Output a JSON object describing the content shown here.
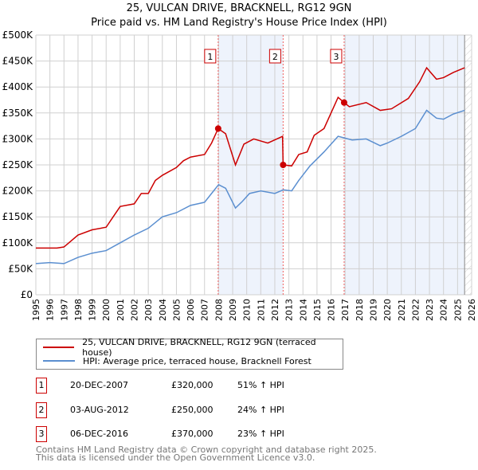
{
  "title": "25, VULCAN DRIVE, BRACKNELL, RG12 9GN",
  "subtitle": "Price paid vs. HM Land Registry's House Price Index (HPI)",
  "chart_data": {
    "type": "line",
    "xlim": [
      1995,
      2026
    ],
    "ylim": [
      0,
      500000
    ],
    "ytick_labels": [
      "£0",
      "£50K",
      "£100K",
      "£150K",
      "£200K",
      "£250K",
      "£300K",
      "£350K",
      "£400K",
      "£450K",
      "£500K"
    ],
    "xtick_labels": [
      "1995",
      "1996",
      "1997",
      "1998",
      "1999",
      "2000",
      "2001",
      "2002",
      "2003",
      "2004",
      "2005",
      "2006",
      "2007",
      "2008",
      "2009",
      "2010",
      "2011",
      "2012",
      "2013",
      "2014",
      "2015",
      "2016",
      "2017",
      "2018",
      "2019",
      "2020",
      "2021",
      "2022",
      "2023",
      "2024",
      "2025",
      "2026"
    ],
    "series": [
      {
        "name": "25, VULCAN DRIVE, BRACKNELL, RG12 9GN (terraced house)",
        "color": "#cc0000",
        "x": [
          1995,
          1996.5,
          1997,
          1998,
          1999,
          2000,
          2000.5,
          2001,
          2002,
          2002.5,
          2003,
          2003.5,
          2004,
          2005,
          2005.5,
          2006,
          2007,
          2007.5,
          2007.97,
          2008.5,
          2009.2,
          2009.8,
          2010.5,
          2011.5,
          2012.55,
          2012.59,
          2013.2,
          2013.7,
          2014.3,
          2014.8,
          2015.5,
          2016.5,
          2016.93,
          2017.3,
          2018.5,
          2019.5,
          2020.3,
          2021.5,
          2022.3,
          2022.8,
          2023.5,
          2024,
          2024.7,
          2025.5
        ],
        "y": [
          90000,
          90000,
          92000,
          115000,
          125000,
          130000,
          150000,
          170000,
          175000,
          195000,
          195000,
          220000,
          230000,
          245000,
          258000,
          265000,
          270000,
          292000,
          320000,
          310000,
          250000,
          290000,
          300000,
          292000,
          305000,
          250000,
          248000,
          270000,
          275000,
          307000,
          320000,
          380000,
          370000,
          362000,
          370000,
          355000,
          358000,
          378000,
          410000,
          437000,
          415000,
          418000,
          428000,
          437000
        ]
      },
      {
        "name": "HPI: Average price, terraced house, Bracknell Forest",
        "color": "#5b8fd0",
        "x": [
          1995,
          1996,
          1997,
          1998,
          1999,
          2000,
          2001,
          2002,
          2003,
          2004,
          2005,
          2006,
          2007,
          2007.5,
          2008,
          2008.5,
          2009.2,
          2009.7,
          2010.2,
          2011,
          2012,
          2012.6,
          2013.2,
          2013.7,
          2014.5,
          2015.5,
          2016.5,
          2017.5,
          2018.5,
          2019.5,
          2020,
          2021,
          2022,
          2022.8,
          2023.5,
          2024,
          2024.7,
          2025.5
        ],
        "y": [
          60000,
          62000,
          60000,
          72000,
          80000,
          85000,
          100000,
          115000,
          128000,
          150000,
          158000,
          172000,
          178000,
          195000,
          212000,
          205000,
          167000,
          180000,
          195000,
          200000,
          195000,
          202000,
          200000,
          220000,
          248000,
          275000,
          305000,
          298000,
          300000,
          287000,
          292000,
          305000,
          320000,
          355000,
          340000,
          338000,
          348000,
          355000
        ]
      }
    ],
    "sales": [
      {
        "label": "1",
        "x": 2007.97,
        "y": 320000
      },
      {
        "label": "2",
        "x": 2012.59,
        "y": 250000
      },
      {
        "label": "3",
        "x": 2016.93,
        "y": 370000
      }
    ],
    "shaded_ranges": [
      [
        2007.97,
        2012.59
      ],
      [
        2016.93,
        2025.5
      ]
    ],
    "forecast_start": 2025.5
  },
  "legend": {
    "property": "25, VULCAN DRIVE, BRACKNELL, RG12 9GN (terraced house)",
    "hpi": "HPI: Average price, terraced house, Bracknell Forest"
  },
  "transactions": [
    {
      "num": "1",
      "date": "20-DEC-2007",
      "price": "£320,000",
      "hpi": "51% ↑ HPI"
    },
    {
      "num": "2",
      "date": "03-AUG-2012",
      "price": "£250,000",
      "hpi": "24% ↑ HPI"
    },
    {
      "num": "3",
      "date": "06-DEC-2016",
      "price": "£370,000",
      "hpi": "23% ↑ HPI"
    }
  ],
  "footer": [
    "Contains HM Land Registry data © Crown copyright and database right 2025.",
    "This data is licensed under the Open Government Licence v3.0."
  ]
}
